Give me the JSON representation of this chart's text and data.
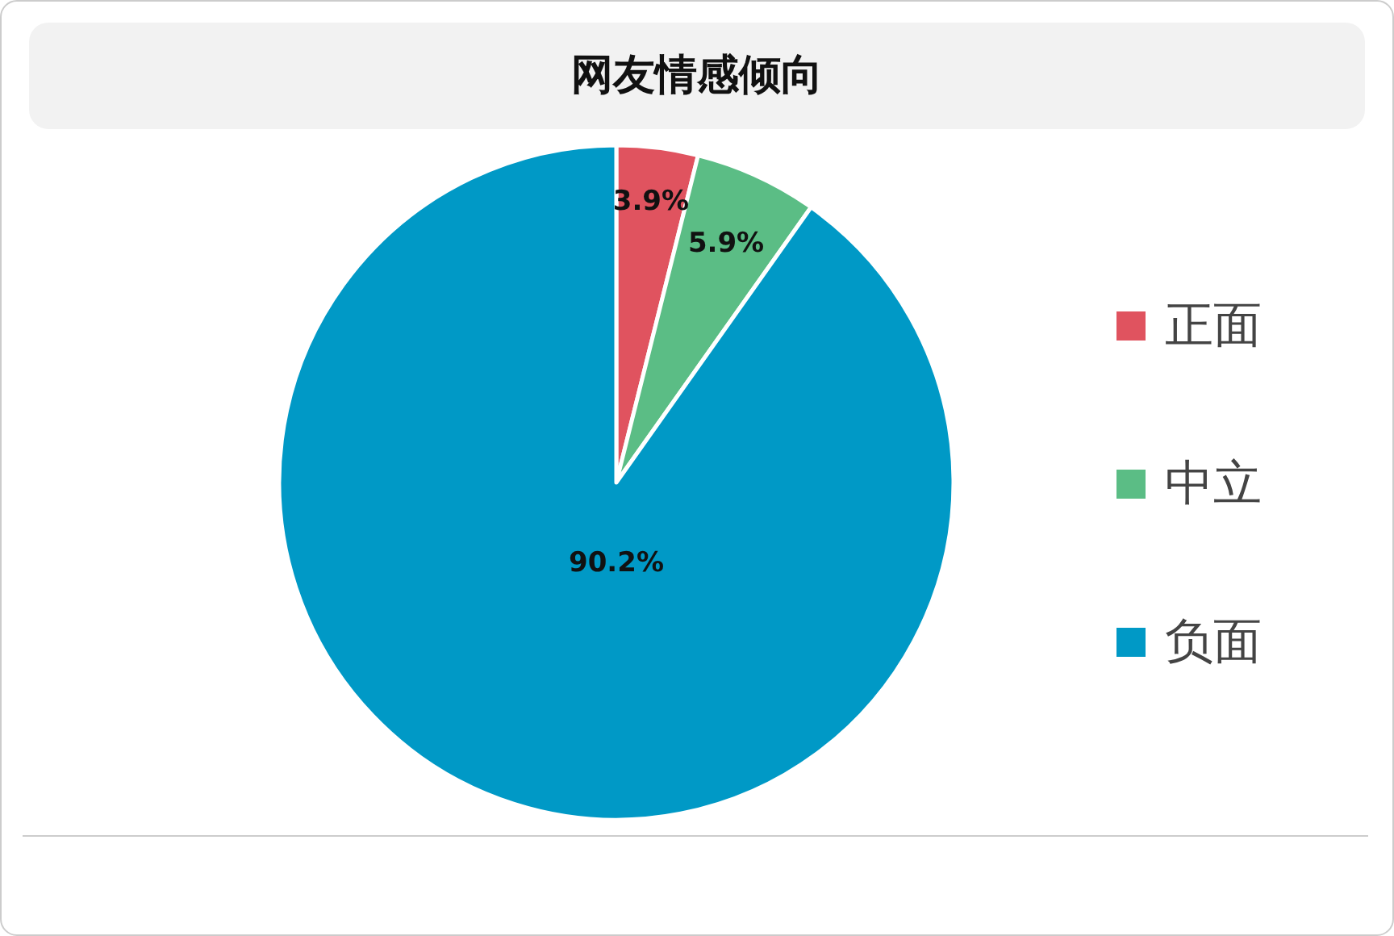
{
  "chart_data": {
    "type": "pie",
    "title": "网友情感倾向",
    "categories": [
      "正面",
      "中立",
      "负面"
    ],
    "values": [
      3.9,
      5.9,
      90.2
    ],
    "colors": [
      "#e0535f",
      "#5bbd85",
      "#0099c6"
    ],
    "value_labels": [
      "3.9%",
      "5.9%",
      "90.2%"
    ],
    "legend": "right"
  }
}
